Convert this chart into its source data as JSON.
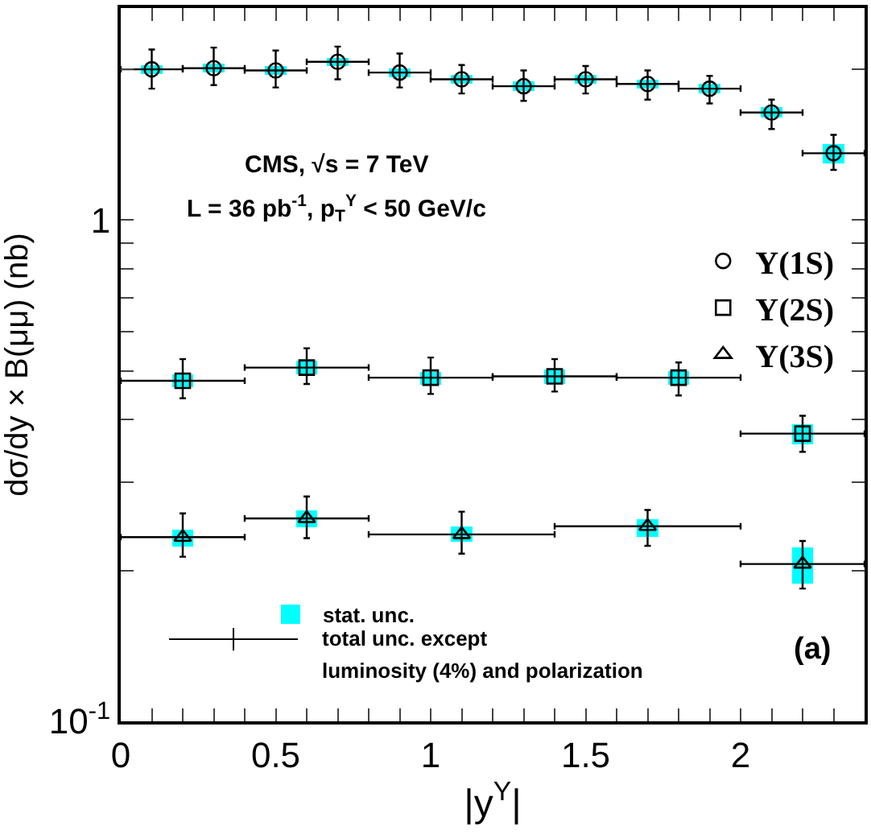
{
  "chart_data": {
    "type": "scatter",
    "xlabel": "|y$^{Υ}$|",
    "ylabel": "dσ/dy × B(μμ) (nb)",
    "log": "y",
    "grid": false,
    "legend": "right",
    "xlim": [
      0,
      2.4
    ],
    "xticks": [
      0,
      {
        "value": 0.1,
        "label": null
      },
      {
        "value": 0.2,
        "label": null
      },
      {
        "value": 0.3,
        "label": null
      },
      {
        "value": 0.4,
        "label": null
      },
      0.5,
      {
        "value": 0.6,
        "label": null
      },
      {
        "value": 0.7,
        "label": null
      },
      {
        "value": 0.8,
        "label": null
      },
      {
        "value": 0.9,
        "label": null
      },
      1,
      {
        "value": 1.1,
        "label": null
      },
      {
        "value": 1.2,
        "label": null
      },
      {
        "value": 1.3,
        "label": null
      },
      {
        "value": 1.4,
        "label": null
      },
      1.5,
      {
        "value": 1.6,
        "label": null
      },
      {
        "value": 1.7,
        "label": null
      },
      {
        "value": 1.8,
        "label": null
      },
      {
        "value": 1.9,
        "label": null
      },
      2,
      {
        "value": 2.1,
        "label": null
      },
      {
        "value": 2.2,
        "label": null
      },
      {
        "value": 2.3,
        "label": null
      }
    ],
    "ylim": [
      0.1,
      2.65
    ],
    "yticks": [
      {
        "value": 0.1,
        "label": "10$^{-1}$"
      },
      {
        "value": 0.2,
        "label": null
      },
      {
        "value": 0.3,
        "label": null
      },
      {
        "value": 0.4,
        "label": null
      },
      {
        "value": 0.5,
        "label": null
      },
      {
        "value": 0.6,
        "label": null
      },
      {
        "value": 0.7,
        "label": null
      },
      {
        "value": 0.8,
        "label": null
      },
      {
        "value": 0.9,
        "label": null
      },
      1,
      {
        "value": 2,
        "label": null
      }
    ],
    "annotations": [
      "CMS, √s = 7 TeV",
      "L = 36 pb$^{-1}$, p$_{T}$$^{Υ}$ < 50 GeV/c",
      "total unc. except",
      "luminosity (4%) and polarization",
      "(a)"
    ],
    "series": [
      {
        "type": "bar",
        "name": "stat. unc.",
        "color": "#00ffff",
        "x": [
          0.1,
          0.3,
          0.5,
          0.7,
          0.9,
          1.1,
          1.3,
          1.5,
          1.7,
          1.9,
          2.1,
          2.3
        ],
        "base": [
          1.96,
          1.97,
          1.95,
          2.03,
          1.93,
          1.87,
          1.81,
          1.87,
          1.83,
          1.79,
          1.6,
          1.3
        ],
        "values": [
          0.08,
          0.08,
          0.08,
          0.08,
          0.08,
          0.08,
          0.08,
          0.08,
          0.08,
          0.08,
          0.08,
          0.12
        ]
      },
      {
        "type": "bar",
        "color": "#00ffff",
        "x": [
          0.2,
          0.6,
          1.0,
          1.4,
          1.8,
          2.2
        ],
        "base": [
          0.464,
          0.493,
          0.469,
          0.471,
          0.469,
          0.357
        ],
        "values": [
          0.029,
          0.032,
          0.029,
          0.032,
          0.031,
          0.035
        ]
      },
      {
        "type": "bar",
        "color": "#00ffff",
        "x": [
          0.2,
          0.6,
          1.1,
          1.7,
          2.2
        ],
        "base": [
          0.223,
          0.244,
          0.228,
          0.233,
          0.188
        ],
        "values": [
          0.018,
          0.02,
          0.017,
          0.02,
          0.034
        ]
      },
      {
        "name": "Υ(1S)",
        "color": "#000000",
        "marker": "circle",
        "x": [
          0.1,
          0.3,
          0.5,
          0.7,
          0.9,
          1.1,
          1.3,
          1.5,
          1.7,
          1.9,
          2.1,
          2.3
        ],
        "values": [
          2.0,
          2.01,
          1.99,
          2.07,
          1.97,
          1.91,
          1.85,
          1.91,
          1.87,
          1.83,
          1.64,
          1.36
        ],
        "errors": [
          [
            1.83,
            2.19
          ],
          [
            1.86,
            2.21
          ],
          [
            1.84,
            2.18
          ],
          [
            1.91,
            2.22
          ],
          [
            1.84,
            2.15
          ],
          [
            1.79,
            2.04
          ],
          [
            1.73,
            1.99
          ],
          [
            1.79,
            2.03
          ],
          [
            1.74,
            1.99
          ],
          [
            1.71,
            1.94
          ],
          [
            1.52,
            1.74
          ],
          [
            1.26,
            1.48
          ]
        ],
        "xerrors": [
          [
            0,
            0.2
          ],
          [
            0.2,
            0.4
          ],
          [
            0.4,
            0.6
          ],
          [
            0.6,
            0.8
          ],
          [
            0.8,
            1.0
          ],
          [
            1.0,
            1.2
          ],
          [
            1.2,
            1.4
          ],
          [
            1.4,
            1.6
          ],
          [
            1.6,
            1.8
          ],
          [
            1.8,
            2.0
          ],
          [
            2.0,
            2.2
          ],
          [
            2.2,
            2.4
          ]
        ]
      },
      {
        "name": "Υ(2S)",
        "color": "#000000",
        "marker": "square",
        "x": [
          0.2,
          0.6,
          1.0,
          1.4,
          1.8,
          2.2
        ],
        "values": [
          0.478,
          0.508,
          0.485,
          0.488,
          0.485,
          0.375
        ],
        "errors": [
          [
            0.441,
            0.528
          ],
          [
            0.471,
            0.555
          ],
          [
            0.45,
            0.532
          ],
          [
            0.455,
            0.528
          ],
          [
            0.447,
            0.52
          ],
          [
            0.345,
            0.407
          ]
        ],
        "xerrors": [
          [
            0,
            0.4
          ],
          [
            0.4,
            0.8
          ],
          [
            0.8,
            1.2
          ],
          [
            1.2,
            1.6
          ],
          [
            1.6,
            2.0
          ],
          [
            2.0,
            2.4
          ]
        ]
      },
      {
        "name": "Υ(3S)",
        "color": "#000000",
        "marker": "triangle",
        "x": [
          0.2,
          0.6,
          1.1,
          1.7,
          2.2
        ],
        "values": [
          0.233,
          0.254,
          0.236,
          0.245,
          0.206
        ],
        "errors": [
          [
            0.213,
            0.26
          ],
          [
            0.232,
            0.281
          ],
          [
            0.216,
            0.262
          ],
          [
            0.224,
            0.264
          ],
          [
            0.184,
            0.229
          ]
        ],
        "xerrors": [
          [
            0,
            0.4
          ],
          [
            0.4,
            0.8
          ],
          [
            0.8,
            1.4
          ],
          [
            1.4,
            2.0
          ],
          [
            2.0,
            2.4
          ]
        ]
      }
    ]
  }
}
